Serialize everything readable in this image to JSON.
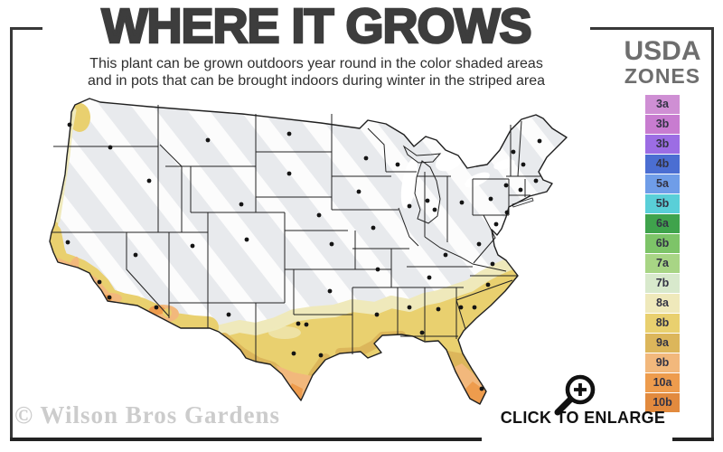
{
  "header": {
    "title": "WHERE IT GROWS",
    "subtitle_line1": "This plant can be grown outdoors year round in the color shaded areas",
    "subtitle_line2": "and in pots that can be brought indoors during winter in the striped area"
  },
  "legend": {
    "title_line1": "USDA",
    "title_line2": "ZONES",
    "zones": [
      {
        "label": "3a",
        "color": "#cf8fd4"
      },
      {
        "label": "3b",
        "color": "#c87cd0"
      },
      {
        "label": "3b",
        "color": "#9c6de4"
      },
      {
        "label": "4b",
        "color": "#4b6ed2"
      },
      {
        "label": "5a",
        "color": "#6f9de8"
      },
      {
        "label": "5b",
        "color": "#59cfd8"
      },
      {
        "label": "6a",
        "color": "#3fa34c"
      },
      {
        "label": "6b",
        "color": "#7dc468"
      },
      {
        "label": "7a",
        "color": "#a8d585"
      },
      {
        "label": "7b",
        "color": "#d8e9cc"
      },
      {
        "label": "8a",
        "color": "#efe9bb"
      },
      {
        "label": "8b",
        "color": "#e9d06f"
      },
      {
        "label": "9a",
        "color": "#dcb65b"
      },
      {
        "label": "9b",
        "color": "#f2b87c"
      },
      {
        "label": "10a",
        "color": "#ee9c4d"
      },
      {
        "label": "10b",
        "color": "#e28a3e"
      }
    ]
  },
  "map": {
    "palette": {
      "base": "#e8eaed",
      "stripe": "#ffffff",
      "z8a": "#efe9bb",
      "z8b": "#e9d06f",
      "z9a": "#dcb65b",
      "z9b": "#f2b87c",
      "z10a": "#ee9c4d"
    },
    "dot_color": "#141414",
    "border_color": "#1f1f1f"
  },
  "watermark": {
    "text": "© Wilson Bros Gardens"
  },
  "enlarge": {
    "label": "CLICK TO ENLARGE"
  }
}
